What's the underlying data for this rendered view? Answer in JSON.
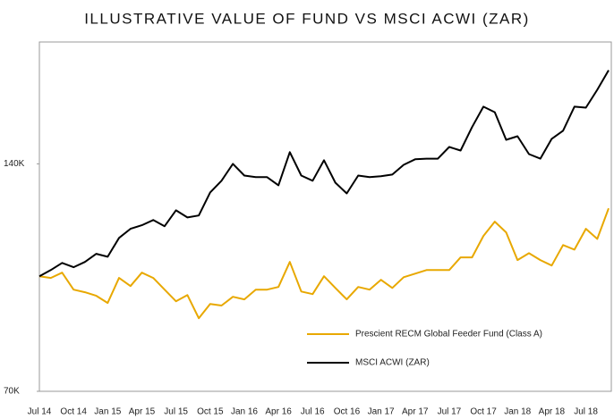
{
  "chart_data": {
    "type": "line",
    "title": "ILLUSTRATIVE VALUE OF FUND VS MSCI ACWI (ZAR)",
    "categories": [
      "Jul 14",
      null,
      null,
      "Oct 14",
      null,
      null,
      "Jan 15",
      null,
      null,
      "Apr 15",
      null,
      null,
      "Jul 15",
      null,
      null,
      "Oct 15",
      null,
      null,
      "Jan 16",
      null,
      null,
      "Apr 16",
      null,
      null,
      "Jul 16",
      null,
      null,
      "Oct 16",
      null,
      null,
      "Jan 17",
      null,
      null,
      "Apr 17",
      null,
      null,
      "Jul 17",
      null,
      null,
      "Oct 17",
      null,
      null,
      "Jan 18",
      null,
      null,
      "Apr 18",
      null,
      null,
      "Jul 18",
      null,
      null
    ],
    "series": [
      {
        "name": "Prescient RECM Global Feeder Fund (Class A)",
        "color": "#e8a800",
        "values": [
          105400,
          104900,
          106500,
          101300,
          100500,
          99400,
          97200,
          104900,
          102400,
          106500,
          104900,
          101300,
          97700,
          99600,
          92500,
          96900,
          96400,
          99100,
          98300,
          101300,
          101300,
          102100,
          109800,
          100700,
          99900,
          105400,
          101800,
          98300,
          102100,
          101300,
          104300,
          101800,
          105100,
          106200,
          107300,
          107300,
          107300,
          111200,
          111200,
          117800,
          122200,
          118900,
          110400,
          112500,
          110400,
          108700,
          115000,
          113600,
          120000,
          116900,
          126300
        ]
      },
      {
        "name": "MSCI ACWI (ZAR)",
        "color": "#000000",
        "values": [
          105400,
          107300,
          109500,
          108200,
          109800,
          112300,
          111400,
          117200,
          120000,
          121100,
          122700,
          120800,
          125700,
          123500,
          124100,
          131200,
          134800,
          140000,
          136400,
          135900,
          135900,
          133400,
          143600,
          136400,
          134800,
          141100,
          134200,
          130900,
          136400,
          135900,
          136200,
          136700,
          139700,
          141400,
          141600,
          141600,
          145200,
          144100,
          151300,
          157600,
          155900,
          147400,
          148500,
          143000,
          141600,
          147700,
          150200,
          157600,
          157300,
          162800,
          168800
        ]
      }
    ],
    "ylim": [
      70000,
      177500
    ],
    "yticks": [
      {
        "value": 70000,
        "label": "70K"
      },
      {
        "value": 140000,
        "label": "140K"
      }
    ],
    "grid": false,
    "legend": "lower right"
  }
}
